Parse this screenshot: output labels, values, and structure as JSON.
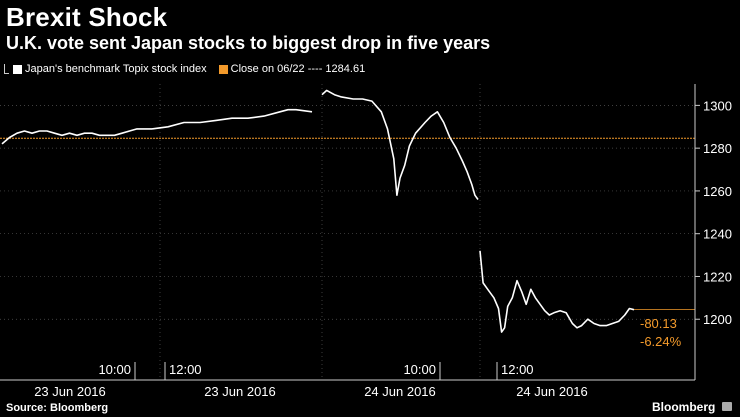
{
  "title": "Brexit Shock",
  "subtitle": "U.K. vote sent Japan stocks to biggest drop in five years",
  "legend": {
    "series_label": "Japan's benchmark Topix stock index",
    "close_label": "Close on 06/22 ---- 1284.61"
  },
  "source": "Source: Bloomberg",
  "brand": "Bloomberg",
  "annotations": {
    "change_points": "-80.13",
    "change_pct": "-6.24%"
  },
  "colors": {
    "series": "#ffffff",
    "reference": "#f39a2b",
    "grid": "#555555"
  },
  "chart_data": {
    "type": "line",
    "title": "Brexit Shock",
    "subtitle": "U.K. vote sent Japan stocks to biggest drop in five years",
    "ylim": [
      1180,
      1310
    ],
    "y_ticks": [
      1200,
      1220,
      1240,
      1260,
      1280,
      1300
    ],
    "reference_line": {
      "label": "Close on 06/22",
      "value": 1284.61
    },
    "x_time_labels": [
      "10:00",
      "12:00",
      "10:00",
      "12:00"
    ],
    "x_date_labels": [
      "23 Jun 2016",
      "23 Jun 2016",
      "24 Jun 2016",
      "24 Jun 2016"
    ],
    "series": [
      {
        "name": "Japan's benchmark Topix stock index",
        "segments": [
          {
            "session": "23 Jun 2016 morning",
            "points": [
              [
                0,
                1282
              ],
              [
                0.05,
                1285
              ],
              [
                0.1,
                1287
              ],
              [
                0.15,
                1288
              ],
              [
                0.2,
                1287
              ],
              [
                0.25,
                1288
              ],
              [
                0.3,
                1288
              ],
              [
                0.35,
                1287
              ],
              [
                0.4,
                1286
              ],
              [
                0.45,
                1287
              ],
              [
                0.5,
                1286
              ],
              [
                0.55,
                1287
              ],
              [
                0.6,
                1287
              ],
              [
                0.65,
                1286
              ],
              [
                0.7,
                1286
              ],
              [
                0.75,
                1286
              ],
              [
                0.8,
                1287
              ],
              [
                0.85,
                1288
              ],
              [
                0.9,
                1289
              ],
              [
                0.95,
                1289
              ],
              [
                1,
                1289
              ]
            ]
          },
          {
            "session": "23 Jun 2016 afternoon",
            "points": [
              [
                0,
                1289
              ],
              [
                0.1,
                1290
              ],
              [
                0.2,
                1292
              ],
              [
                0.3,
                1292
              ],
              [
                0.4,
                1293
              ],
              [
                0.5,
                1294
              ],
              [
                0.6,
                1294
              ],
              [
                0.7,
                1295
              ],
              [
                0.8,
                1297
              ],
              [
                0.85,
                1298
              ],
              [
                0.9,
                1298
              ],
              [
                1,
                1297
              ]
            ]
          },
          {
            "session": "24 Jun 2016 morning",
            "points": [
              [
                0,
                1305
              ],
              [
                0.03,
                1307
              ],
              [
                0.08,
                1305
              ],
              [
                0.12,
                1304
              ],
              [
                0.2,
                1303
              ],
              [
                0.26,
                1303
              ],
              [
                0.32,
                1302
              ],
              [
                0.38,
                1297
              ],
              [
                0.42,
                1289
              ],
              [
                0.46,
                1275
              ],
              [
                0.48,
                1258
              ],
              [
                0.5,
                1266
              ],
              [
                0.53,
                1272
              ],
              [
                0.56,
                1281
              ],
              [
                0.6,
                1287
              ],
              [
                0.66,
                1292
              ],
              [
                0.7,
                1295
              ],
              [
                0.74,
                1297
              ],
              [
                0.78,
                1292
              ],
              [
                0.82,
                1285
              ],
              [
                0.86,
                1280
              ],
              [
                0.9,
                1274
              ],
              [
                0.93,
                1269
              ],
              [
                0.96,
                1263
              ],
              [
                0.98,
                1258
              ],
              [
                1,
                1256
              ]
            ]
          },
          {
            "session": "24 Jun 2016 afternoon",
            "points": [
              [
                0,
                1232
              ],
              [
                0.02,
                1217
              ],
              [
                0.05,
                1214
              ],
              [
                0.09,
                1210
              ],
              [
                0.12,
                1205
              ],
              [
                0.14,
                1194
              ],
              [
                0.16,
                1196
              ],
              [
                0.18,
                1206
              ],
              [
                0.21,
                1210
              ],
              [
                0.24,
                1218
              ],
              [
                0.27,
                1213
              ],
              [
                0.3,
                1207
              ],
              [
                0.33,
                1214
              ],
              [
                0.36,
                1210
              ],
              [
                0.39,
                1207
              ],
              [
                0.42,
                1204
              ],
              [
                0.45,
                1202
              ],
              [
                0.48,
                1203
              ],
              [
                0.52,
                1204
              ],
              [
                0.56,
                1203
              ],
              [
                0.6,
                1198
              ],
              [
                0.63,
                1196
              ],
              [
                0.66,
                1197
              ],
              [
                0.7,
                1200
              ],
              [
                0.74,
                1198
              ],
              [
                0.78,
                1197
              ],
              [
                0.82,
                1197
              ],
              [
                0.86,
                1198
              ],
              [
                0.9,
                1199
              ],
              [
                0.94,
                1202
              ],
              [
                0.97,
                1205
              ],
              [
                1,
                1204.48
              ]
            ]
          }
        ]
      }
    ],
    "last_value": 1204.48
  }
}
